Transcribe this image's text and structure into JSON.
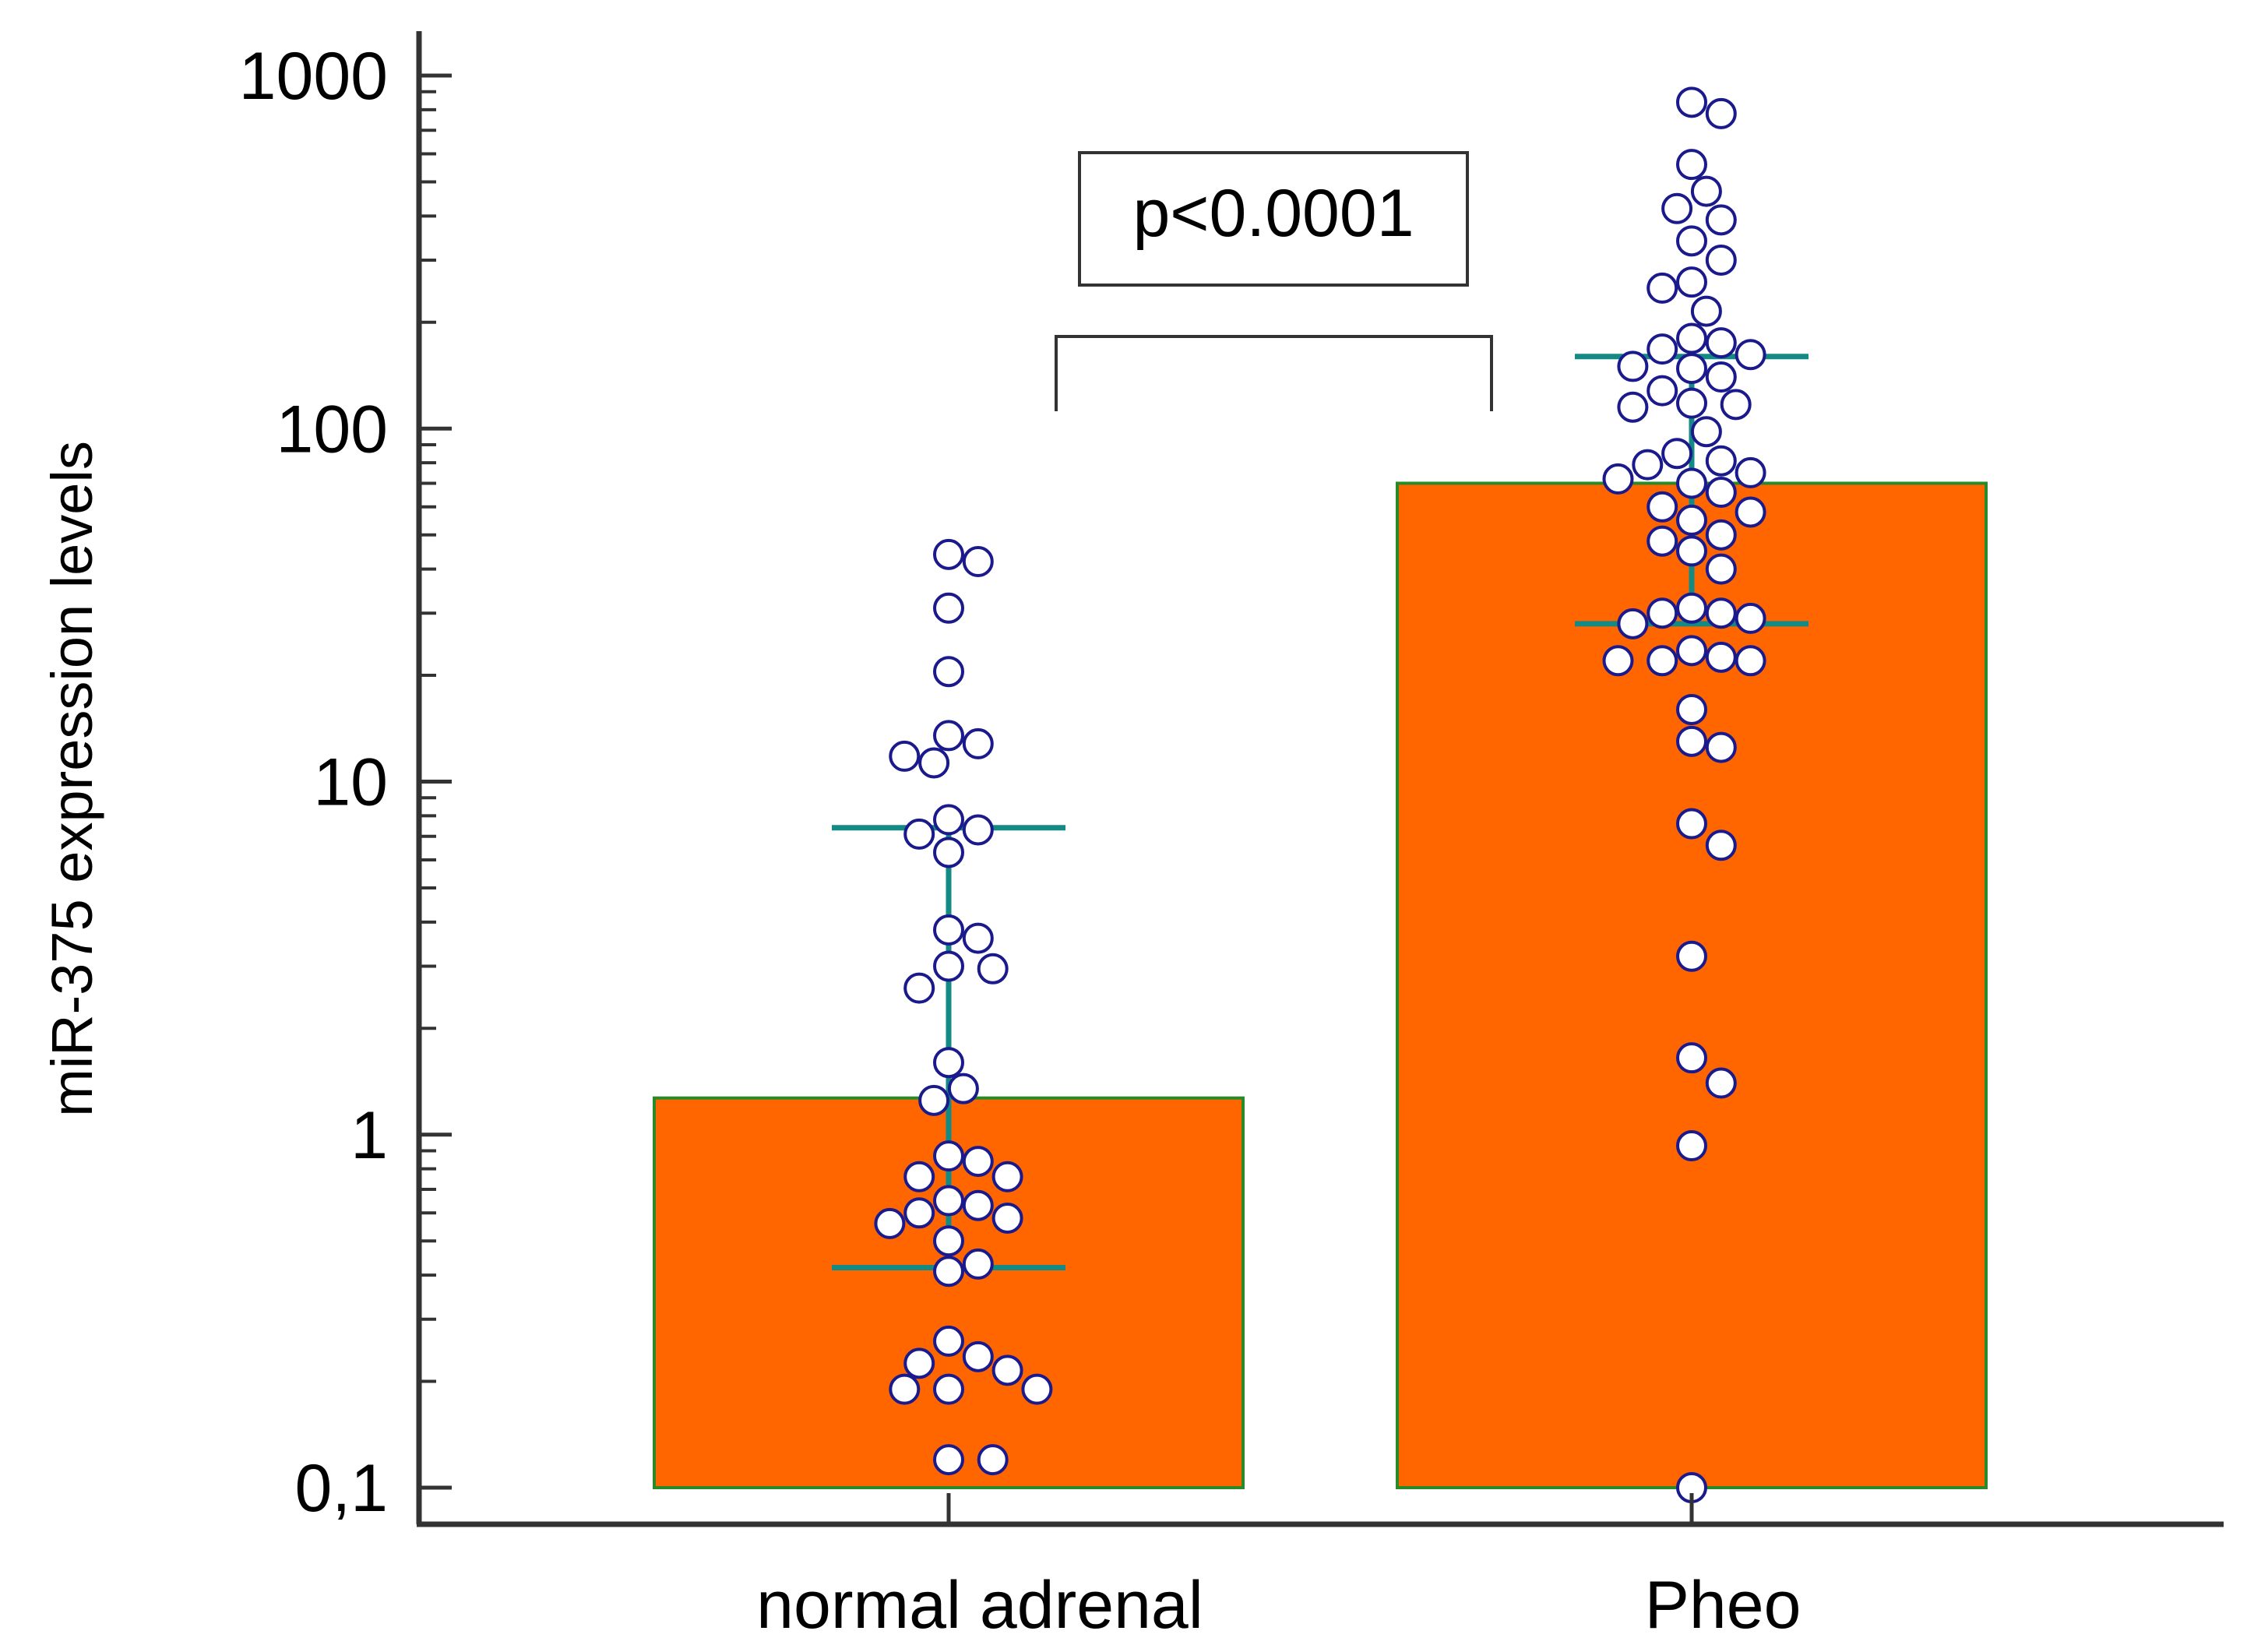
{
  "chart_data": {
    "type": "bar",
    "title": "",
    "xlabel": "",
    "ylabel": "miR-375 expression levels",
    "yscale": "log",
    "ylim": [
      0.1,
      1000
    ],
    "yticks": [
      {
        "value": 1000,
        "label": "1000"
      },
      {
        "value": 100,
        "label": "100"
      },
      {
        "value": 10,
        "label": "10"
      },
      {
        "value": 1,
        "label": "1"
      },
      {
        "value": 0.1,
        "label": "0,1"
      }
    ],
    "categories": [
      "normal adrenal",
      "Pheo"
    ],
    "values": [
      1.27,
      70
    ],
    "error_low": [
      0.42,
      28
    ],
    "error_high": [
      7.4,
      160
    ],
    "points": [
      [
        44,
        42,
        31,
        20.5,
        13.5,
        12.8,
        11.3,
        11.8,
        7.8,
        7.3,
        7.1,
        6.3,
        3.8,
        3.6,
        3.0,
        2.95,
        2.6,
        1.6,
        1.35,
        1.25,
        0.87,
        0.84,
        0.76,
        0.76,
        0.65,
        0.63,
        0.6,
        0.58,
        0.56,
        0.5,
        0.43,
        0.41,
        0.26,
        0.235,
        0.225,
        0.215,
        0.19,
        0.19,
        0.19,
        0.12,
        0.12
      ],
      [
        840,
        780,
        560,
        470,
        420,
        390,
        340,
        300,
        260,
        250,
        215,
        180,
        175,
        168,
        162,
        150,
        148,
        140,
        128,
        118,
        117,
        115,
        98,
        85,
        81,
        79,
        75,
        72,
        70,
        66,
        60,
        58,
        55,
        50,
        48,
        45,
        40,
        31,
        30,
        30,
        29,
        28,
        23.5,
        22.5,
        22,
        22,
        22,
        16,
        13,
        12.5,
        7.6,
        6.6,
        3.2,
        1.65,
        1.4,
        0.93,
        0.1
      ]
    ],
    "annotations": [
      {
        "text": "p<0.0001"
      }
    ],
    "colors": {
      "bar_fill": "#ff6600",
      "bar_stroke": "#2a8a2a",
      "error_bar": "#138a84",
      "point_stroke": "#1a1a8c",
      "point_fill": "#ffffff",
      "axis": "#333333"
    }
  }
}
